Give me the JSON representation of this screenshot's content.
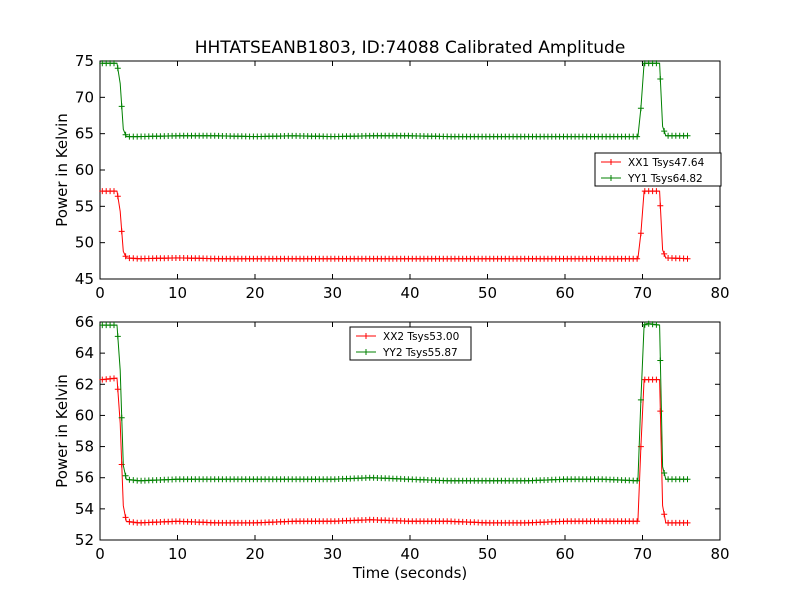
{
  "figure": {
    "title": "HHTATSEANB1803, ID:74088 Calibrated Amplitude",
    "xlabel": "Time (seconds)"
  },
  "chart_data": [
    {
      "type": "line",
      "title": "HHTATSEANB1803, ID:74088 Calibrated Amplitude",
      "xlabel": "",
      "ylabel": "Power in Kelvin",
      "xlim": [
        0,
        80
      ],
      "ylim": [
        45,
        75
      ],
      "xticks": [
        0,
        10,
        20,
        30,
        40,
        50,
        60,
        70,
        80
      ],
      "yticks": [
        45,
        50,
        55,
        60,
        65,
        70,
        75
      ],
      "grid": false,
      "legend": "right",
      "series": [
        {
          "name": "XX1 Tsys47.64",
          "color": "#ff0000",
          "marker": "+",
          "x": [
            0.3,
            2.2,
            2.6,
            3.0,
            3.4,
            5,
            10,
            15,
            20,
            25,
            30,
            35,
            40,
            45,
            50,
            55,
            60,
            65,
            69.4,
            69.8,
            70.2,
            70.6,
            72.2,
            72.6,
            73.0,
            75.8
          ],
          "y": [
            57.1,
            57.1,
            54.3,
            48.8,
            47.9,
            47.8,
            47.9,
            47.8,
            47.8,
            47.8,
            47.8,
            47.8,
            47.8,
            47.8,
            47.8,
            47.8,
            47.8,
            47.8,
            47.8,
            51.3,
            57.1,
            57.1,
            57.1,
            49.0,
            47.9,
            47.8
          ]
        },
        {
          "name": "YY1 Tsys64.82",
          "color": "#008000",
          "marker": "+",
          "x": [
            0.3,
            2.2,
            2.6,
            3.0,
            3.4,
            5,
            10,
            15,
            20,
            25,
            30,
            35,
            40,
            45,
            50,
            55,
            60,
            65,
            69.4,
            69.8,
            70.2,
            70.6,
            72.2,
            72.6,
            73.0,
            75.8
          ],
          "y": [
            74.7,
            74.7,
            71.9,
            65.6,
            64.6,
            64.6,
            64.7,
            64.7,
            64.6,
            64.7,
            64.6,
            64.7,
            64.7,
            64.6,
            64.6,
            64.6,
            64.6,
            64.6,
            64.6,
            68.5,
            74.7,
            74.7,
            74.7,
            66.0,
            64.7,
            64.7
          ]
        }
      ]
    },
    {
      "type": "line",
      "title": "",
      "xlabel": "Time (seconds)",
      "ylabel": "Power in Kelvin",
      "xlim": [
        0,
        80
      ],
      "ylim": [
        52,
        66
      ],
      "xticks": [
        0,
        10,
        20,
        30,
        40,
        50,
        60,
        70,
        80
      ],
      "yticks": [
        52,
        54,
        56,
        58,
        60,
        62,
        64,
        66
      ],
      "grid": false,
      "legend": "top-center",
      "series": [
        {
          "name": "XX2 Tsys53.00",
          "color": "#ff0000",
          "marker": "+",
          "x": [
            0.3,
            2.2,
            2.6,
            3.0,
            3.4,
            5,
            10,
            15,
            20,
            25,
            30,
            35,
            40,
            45,
            50,
            55,
            60,
            65,
            69.4,
            69.8,
            70.2,
            70.6,
            72.2,
            72.6,
            73.0,
            75.8
          ],
          "y": [
            62.3,
            62.4,
            59.5,
            54.2,
            53.2,
            53.1,
            53.2,
            53.1,
            53.1,
            53.2,
            53.2,
            53.3,
            53.2,
            53.2,
            53.1,
            53.1,
            53.2,
            53.2,
            53.2,
            58.0,
            62.3,
            62.3,
            62.3,
            54.2,
            53.1,
            53.1
          ]
        },
        {
          "name": "YY2 Tsys55.87",
          "color": "#008000",
          "marker": "+",
          "x": [
            0.3,
            2.2,
            2.6,
            3.0,
            3.4,
            5,
            10,
            15,
            20,
            25,
            30,
            35,
            40,
            45,
            50,
            55,
            60,
            65,
            69.4,
            69.8,
            70.2,
            70.6,
            72.2,
            72.6,
            73.0,
            75.8
          ],
          "y": [
            65.8,
            65.8,
            62.9,
            56.8,
            55.9,
            55.8,
            55.9,
            55.9,
            55.9,
            55.9,
            55.9,
            56.0,
            55.9,
            55.8,
            55.8,
            55.8,
            55.9,
            55.9,
            55.8,
            61.0,
            65.8,
            65.9,
            65.8,
            56.7,
            55.9,
            55.9
          ]
        }
      ]
    }
  ]
}
